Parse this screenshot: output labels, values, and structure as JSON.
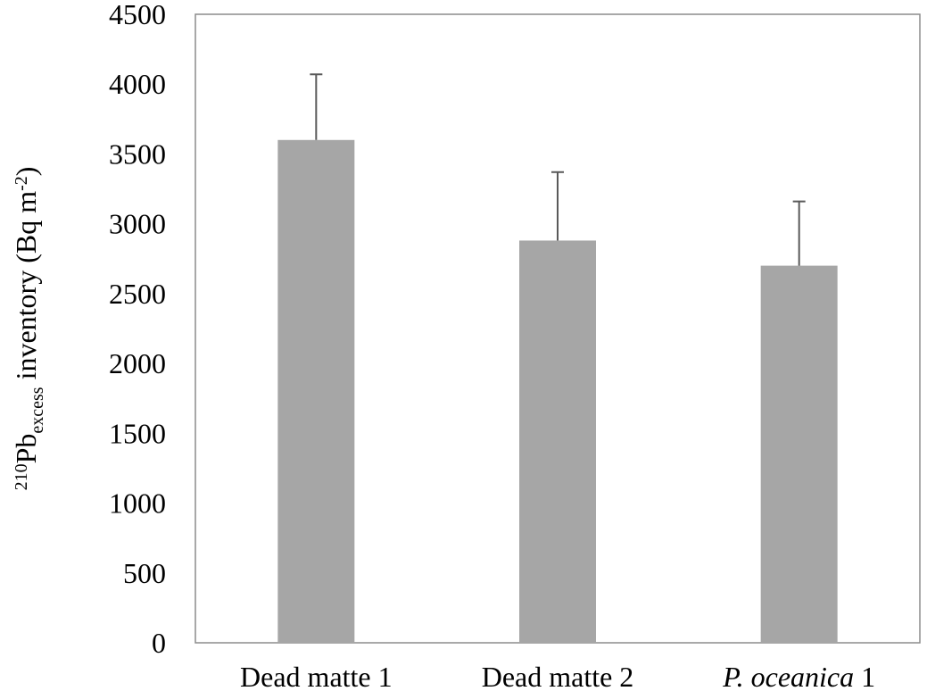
{
  "chart_data": {
    "type": "bar",
    "categories": [
      "Dead matte 1",
      "Dead matte 2",
      "P. oceanica 1"
    ],
    "category_italic_part": [
      "",
      "",
      "P. oceanica"
    ],
    "values": [
      3600,
      2880,
      2700
    ],
    "error_plus": [
      470,
      490,
      460
    ],
    "ylim": [
      0,
      4500
    ],
    "yticks": [
      0,
      500,
      1000,
      1500,
      2000,
      2500,
      3000,
      3500,
      4000,
      4500
    ],
    "ylabel": {
      "superscript_prefix": "210",
      "main": "Pb",
      "subscript": "excess",
      "rest": " inventory (Bq m",
      "superscript_unit": "-2",
      "close": ")"
    },
    "xlabel": "",
    "title": "",
    "grid": false,
    "legend": "none",
    "colors": {
      "bar": "#a6a6a6",
      "frame": "#8c8c8c",
      "error": "#595959"
    }
  }
}
